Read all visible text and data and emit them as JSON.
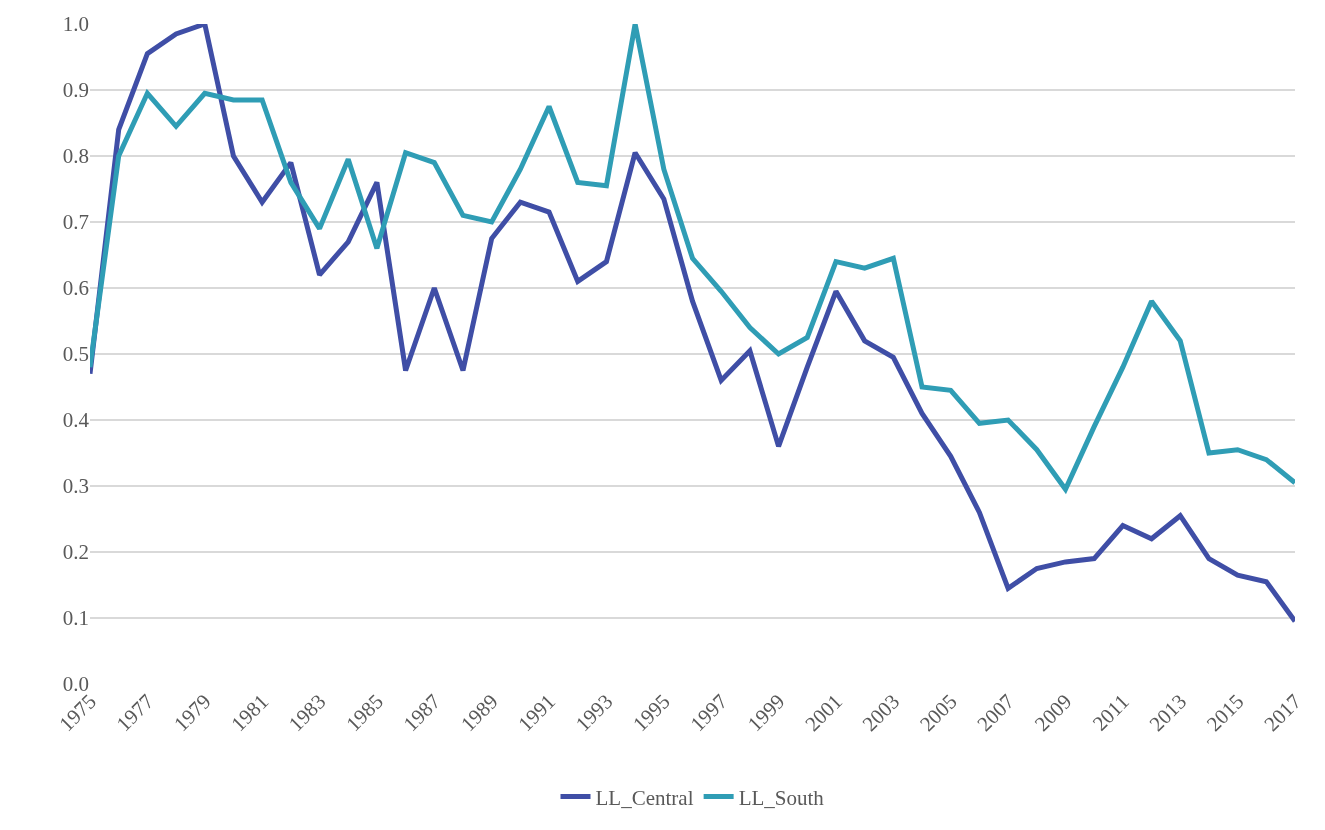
{
  "chart_data": {
    "type": "line",
    "x": [
      1975,
      1976,
      1977,
      1978,
      1979,
      1980,
      1981,
      1982,
      1983,
      1984,
      1985,
      1986,
      1987,
      1988,
      1989,
      1990,
      1991,
      1992,
      1993,
      1994,
      1995,
      1996,
      1997,
      1998,
      1999,
      2000,
      2001,
      2002,
      2003,
      2004,
      2005,
      2006,
      2007,
      2008,
      2009,
      2010,
      2011,
      2012,
      2013,
      2014,
      2015,
      2016,
      2017
    ],
    "series": [
      {
        "name": "LL_Central",
        "color": "#3f4ea6",
        "values": [
          0.47,
          0.84,
          0.955,
          0.985,
          1.0,
          0.8,
          0.73,
          0.79,
          0.62,
          0.67,
          0.76,
          0.475,
          0.6,
          0.475,
          0.675,
          0.73,
          0.715,
          0.61,
          0.64,
          0.805,
          0.735,
          0.58,
          0.46,
          0.505,
          0.36,
          0.48,
          0.595,
          0.52,
          0.495,
          0.41,
          0.345,
          0.26,
          0.145,
          0.175,
          0.185,
          0.19,
          0.24,
          0.22,
          0.255,
          0.19,
          0.165,
          0.155,
          0.095
        ]
      },
      {
        "name": "LL_South",
        "color": "#2f9db5",
        "values": [
          0.48,
          0.8,
          0.895,
          0.845,
          0.895,
          0.885,
          0.885,
          0.76,
          0.69,
          0.795,
          0.66,
          0.805,
          0.79,
          0.71,
          0.7,
          0.78,
          0.875,
          0.76,
          0.755,
          1.0,
          0.78,
          0.645,
          0.595,
          0.54,
          0.5,
          0.525,
          0.64,
          0.63,
          0.645,
          0.45,
          0.445,
          0.395,
          0.4,
          0.355,
          0.295,
          0.39,
          0.48,
          0.58,
          0.52,
          0.35,
          0.355,
          0.34,
          0.305
        ]
      }
    ],
    "xlim": [
      1975,
      2017
    ],
    "xticks": [
      1975,
      1977,
      1979,
      1981,
      1983,
      1985,
      1987,
      1989,
      1991,
      1993,
      1995,
      1997,
      1999,
      2001,
      2003,
      2005,
      2007,
      2009,
      2011,
      2013,
      2015,
      2017
    ],
    "ylim": [
      0,
      1
    ],
    "yticks": [
      {
        "value": 0,
        "label": "0.0"
      },
      {
        "value": 0.1,
        "label": "0.1"
      },
      {
        "value": 0.2,
        "label": "0.2"
      },
      {
        "value": 0.3,
        "label": "0.3"
      },
      {
        "value": 0.4,
        "label": "0.4"
      },
      {
        "value": 0.5,
        "label": "0.5"
      },
      {
        "value": 0.6,
        "label": "0.6"
      },
      {
        "value": 0.7,
        "label": "0.7"
      },
      {
        "value": 0.8,
        "label": "0.8"
      },
      {
        "value": 0.9,
        "label": "0.9"
      },
      {
        "value": 1,
        "label": "1.0"
      }
    ],
    "grid": "y",
    "legend": "bottom",
    "marker": "none",
    "line_style": "solid"
  }
}
